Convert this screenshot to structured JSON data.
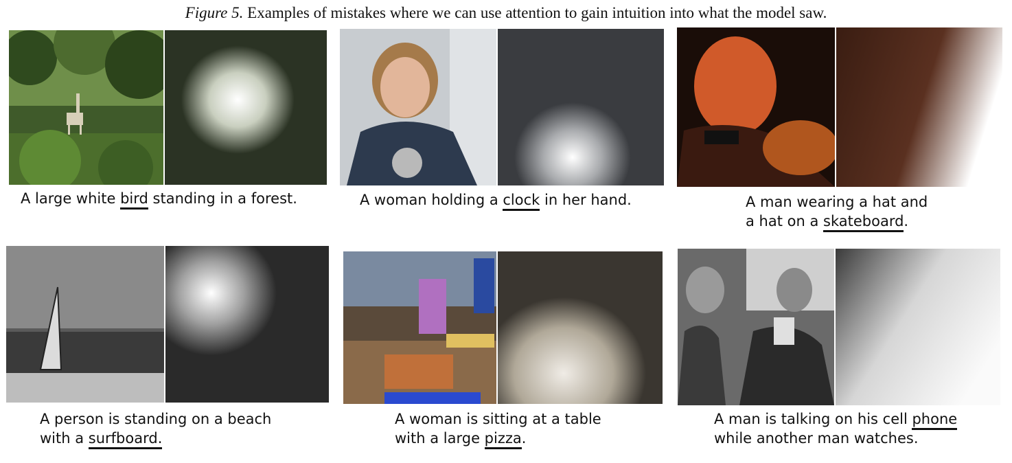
{
  "figure": {
    "label": "Figure 5.",
    "text": "Examples of mistakes where we can use attention to gain intuition into what the model saw."
  },
  "panels": [
    {
      "lines": [
        {
          "pre": "A large white ",
          "word": "bird",
          "post": " standing in a forest."
        }
      ]
    },
    {
      "lines": [
        {
          "pre": "A woman holding a ",
          "word": "clock",
          "post": " in her hand."
        }
      ]
    },
    {
      "lines": [
        {
          "pre": "A man wearing a hat and",
          "word": "",
          "post": ""
        },
        {
          "pre": "a hat on a ",
          "word": "skateboard",
          "post": "."
        }
      ]
    },
    {
      "lines": [
        {
          "pre": "A person is standing on a beach",
          "word": "",
          "post": ""
        },
        {
          "pre": "with a ",
          "word": "surfboard.",
          "post": ""
        }
      ]
    },
    {
      "lines": [
        {
          "pre": "A woman is sitting at a table",
          "word": "",
          "post": ""
        },
        {
          "pre": "with a large ",
          "word": "pizza",
          "post": "."
        }
      ]
    },
    {
      "lines": [
        {
          "pre": "A man is talking on his cell ",
          "word": "phone",
          "post": ""
        },
        {
          "pre": "while another man watches.",
          "word": "",
          "post": ""
        }
      ]
    }
  ]
}
